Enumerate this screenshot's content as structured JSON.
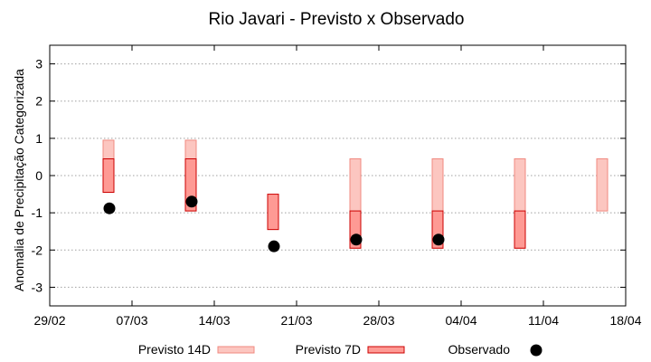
{
  "chart_data": {
    "type": "floating-bar-with-points",
    "title": "Rio Javari - Previsto x Observado",
    "xlabel": "",
    "ylabel": "Anomalia de Precipitação Categorizada",
    "ylim": [
      -3.5,
      3.5
    ],
    "yticks": [
      3,
      2,
      1,
      0,
      -1,
      -2,
      -3
    ],
    "xlim_days": [
      0,
      49
    ],
    "xticks": [
      {
        "day": 0,
        "label": "29/02"
      },
      {
        "day": 7,
        "label": "07/03"
      },
      {
        "day": 14,
        "label": "14/03"
      },
      {
        "day": 21,
        "label": "21/03"
      },
      {
        "day": 28,
        "label": "28/03"
      },
      {
        "day": 35,
        "label": "04/04"
      },
      {
        "day": 42,
        "label": "11/04"
      },
      {
        "day": 49,
        "label": "18/04"
      }
    ],
    "grid": true,
    "series": [
      {
        "name": "Previsto 14D",
        "kind": "range",
        "color_fill": "#fcc6c0",
        "color_edge": "#f08a80",
        "data": [
          {
            "day": 5,
            "low": -0.45,
            "high": 0.95
          },
          {
            "day": 12,
            "low": -0.95,
            "high": 0.95
          },
          {
            "day": 26,
            "low": -1.95,
            "high": 0.45
          },
          {
            "day": 33,
            "low": -1.95,
            "high": 0.45
          },
          {
            "day": 40,
            "low": -1.95,
            "high": 0.45
          },
          {
            "day": 47,
            "low": -0.95,
            "high": 0.45
          }
        ]
      },
      {
        "name": "Previsto 7D",
        "kind": "range",
        "color_fill": "#fe9a94",
        "color_edge": "#cc0000",
        "data": [
          {
            "day": 5,
            "low": -0.45,
            "high": 0.45
          },
          {
            "day": 12,
            "low": -0.95,
            "high": 0.45
          },
          {
            "day": 19,
            "low": -1.45,
            "high": -0.5
          },
          {
            "day": 26,
            "low": -1.95,
            "high": -0.95
          },
          {
            "day": 33,
            "low": -1.95,
            "high": -0.95
          },
          {
            "day": 40,
            "low": -1.95,
            "high": -0.95
          }
        ]
      },
      {
        "name": "Observado",
        "kind": "point",
        "color_fill": "#000000",
        "data": [
          {
            "day": 5,
            "value": -0.88
          },
          {
            "day": 12,
            "value": -0.7
          },
          {
            "day": 19,
            "value": -1.9
          },
          {
            "day": 26,
            "value": -1.72
          },
          {
            "day": 33,
            "value": -1.72
          }
        ]
      }
    ],
    "legend_position": "bottom"
  }
}
